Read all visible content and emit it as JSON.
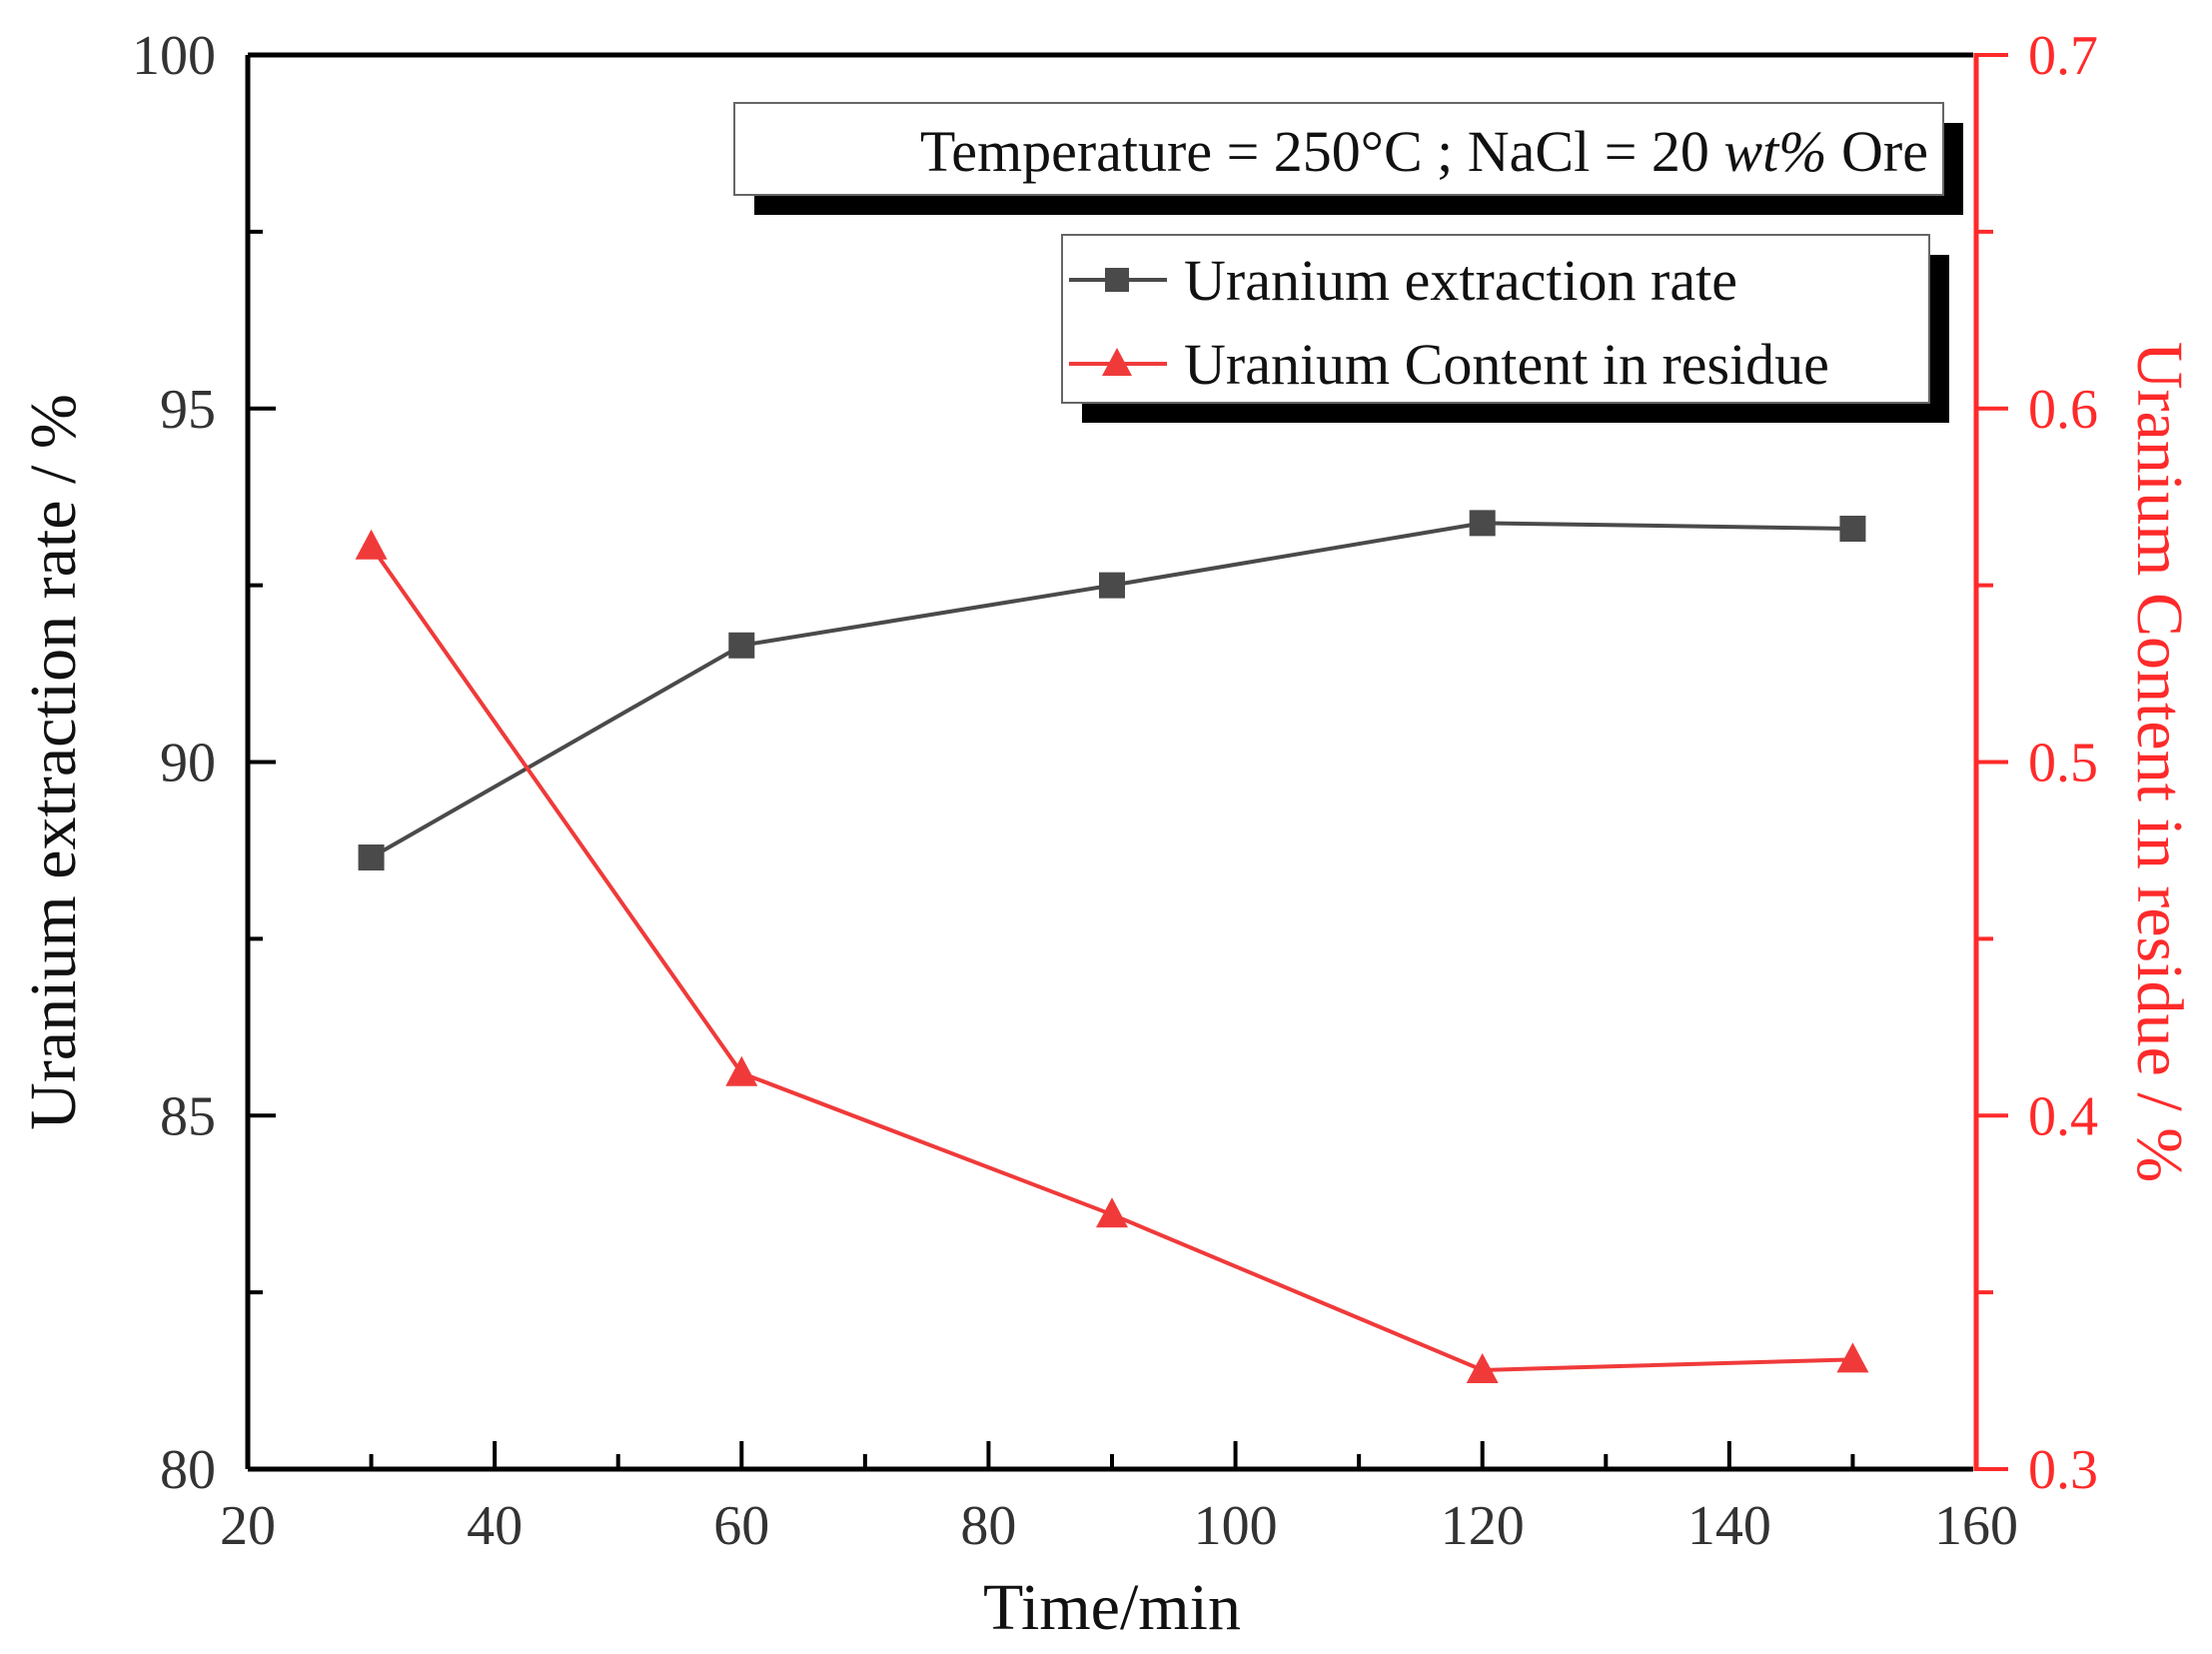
{
  "chart_data": {
    "type": "line",
    "note": {
      "prefix": "Temperature = 250°C ; NaCl = 20 ",
      "italic": "wt%",
      "suffix": " Ore"
    },
    "x": [
      30,
      60,
      90,
      120,
      150
    ],
    "xlabel": "Time/min",
    "xlim": [
      20,
      160
    ],
    "x_ticks": [
      "20",
      "40",
      "60",
      "80",
      "100",
      "120",
      "140",
      "160"
    ],
    "ylabel_left": "Uranium extraction rate / %",
    "ylim_left": [
      80,
      100
    ],
    "y_ticks_left": [
      "80",
      "85",
      "90",
      "95",
      "100"
    ],
    "ylabel_right": "Uranium Content in residue / %",
    "ylim_right": [
      0.3,
      0.7
    ],
    "y_ticks_right": [
      "0.3",
      "0.4",
      "0.5",
      "0.6",
      "0.7"
    ],
    "series": [
      {
        "name": "Uranium extraction rate",
        "axis": "left",
        "marker": "square",
        "color": "#4a4a4a",
        "values": [
          88.65,
          91.65,
          92.5,
          93.38,
          93.3
        ]
      },
      {
        "name": "Uranium Content in residue",
        "axis": "right",
        "marker": "triangle",
        "color": "#f03a3a",
        "values": [
          0.561,
          0.412,
          0.372,
          0.328,
          0.331
        ]
      }
    ],
    "legend_position": "top-right",
    "grid": false,
    "colors": {
      "axis": "#000000",
      "right_axis": "#ff2a2a"
    }
  }
}
